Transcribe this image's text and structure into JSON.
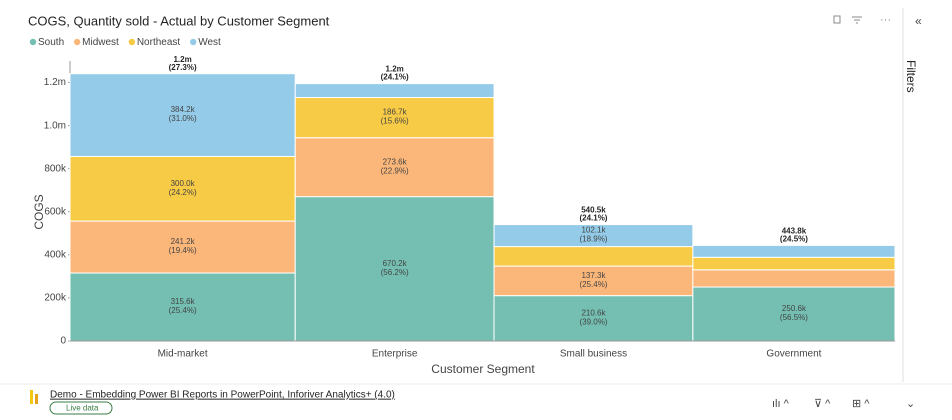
{
  "chart_data": {
    "type": "marimekko",
    "title": "COGS, Quantity sold - Actual by Customer Segment",
    "x_label": "Customer Segment",
    "y_label": "COGS",
    "categories": [
      "Mid-market",
      "Enterprise",
      "Small business",
      "Government"
    ],
    "x_shares": [
      27.3,
      24.1,
      24.1,
      24.5
    ],
    "x_share_labels": [
      "(27.3%)",
      "(24.1%)",
      "(24.1%)",
      "(24.5%)"
    ],
    "totals": [
      1241000,
      1195000,
      540500,
      443800
    ],
    "total_labels": [
      "1.2m",
      "1.2m",
      "540.5k",
      "443.8k"
    ],
    "series": [
      {
        "name": "South",
        "color": "#74bfb1",
        "values": [
          315600,
          670200,
          210600,
          250600
        ],
        "value_labels": [
          "315.6k",
          "670.2k",
          "210.6k",
          "250.6k"
        ],
        "percent_labels": [
          "(25.4%)",
          "(56.2%)",
          "(39.0%)",
          "(56.5%)"
        ]
      },
      {
        "name": "Midwest",
        "color": "#fbb77a",
        "values": [
          241200,
          273600,
          137300,
          80000
        ],
        "value_labels": [
          "241.2k",
          "273.6k",
          "137.3k",
          null
        ],
        "percent_labels": [
          "(19.4%)",
          "(22.9%)",
          "(25.4%)",
          null
        ]
      },
      {
        "name": "Northeast",
        "color": "#f7cb45",
        "values": [
          300000,
          186700,
          90500,
          58000
        ],
        "value_labels": [
          "300.0k",
          "186.7k",
          null,
          null
        ],
        "percent_labels": [
          "(24.2%)",
          "(15.6%)",
          null,
          null
        ]
      },
      {
        "name": "West",
        "color": "#93cbe9",
        "values": [
          384200,
          64500,
          102100,
          55200
        ],
        "value_labels": [
          "384.2k",
          null,
          "102.1k",
          null
        ],
        "percent_labels": [
          "(31.0%)",
          null,
          "(18.9%)",
          null
        ]
      }
    ],
    "ylim": [
      0,
      1300000
    ],
    "yticks": [
      0,
      {
        "value": 200000,
        "label": "200k"
      },
      {
        "value": 400000,
        "label": "400k"
      },
      {
        "value": 600000,
        "label": "600k"
      },
      {
        "value": 800000,
        "label": "800k"
      },
      {
        "value": 1000000,
        "label": "1.0m"
      },
      {
        "value": 1200000,
        "label": "1.2m"
      }
    ],
    "grid": false
  },
  "footer": {
    "report": "Demo - Embedding Power BI Reports in PowerPoint, Inforiver Analytics+ (4.0)",
    "status": "Live data"
  },
  "filters_pane": {
    "label": "Filters"
  }
}
